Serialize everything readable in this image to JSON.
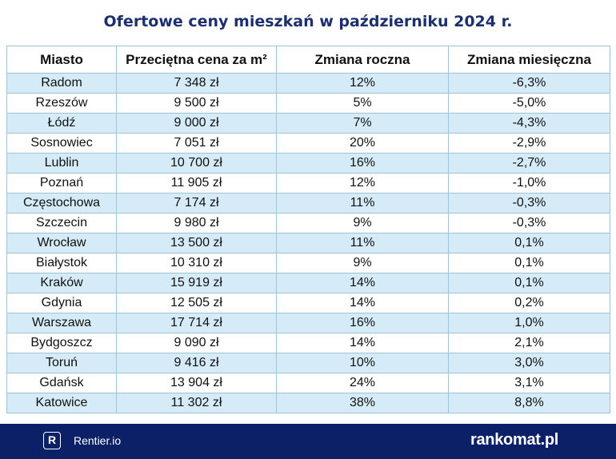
{
  "chart_data": {
    "type": "table",
    "title": "Ofertowe ceny mieszkań w październiku 2024 r.",
    "columns": [
      "Miasto",
      "Przeciętna cena za m²",
      "Zmiana roczna",
      "Zmiana miesięczna"
    ],
    "rows": [
      [
        "Radom",
        "7 348 zł",
        "12%",
        "-6,3%"
      ],
      [
        "Rzeszów",
        "9 500 zł",
        "5%",
        "-5,0%"
      ],
      [
        "Łódź",
        "9 000 zł",
        "7%",
        "-4,3%"
      ],
      [
        "Sosnowiec",
        "7 051 zł",
        "20%",
        "-2,9%"
      ],
      [
        "Lublin",
        "10 700 zł",
        "16%",
        "-2,7%"
      ],
      [
        "Poznań",
        "11 905 zł",
        "12%",
        "-1,0%"
      ],
      [
        "Częstochowa",
        "7 174 zł",
        "11%",
        "-0,3%"
      ],
      [
        "Szczecin",
        "9 980 zł",
        "9%",
        "-0,3%"
      ],
      [
        "Wrocław",
        "13 500 zł",
        "11%",
        "0,1%"
      ],
      [
        "Białystok",
        "10 310 zł",
        "9%",
        "0,1%"
      ],
      [
        "Kraków",
        "15 919 zł",
        "14%",
        "0,1%"
      ],
      [
        "Gdynia",
        "12 505 zł",
        "14%",
        "0,2%"
      ],
      [
        "Warszawa",
        "17 714 zł",
        "16%",
        "1,0%"
      ],
      [
        "Bydgoszcz",
        "9 090 zł",
        "14%",
        "2,1%"
      ],
      [
        "Toruń",
        "9 416 zł",
        "10%",
        "3,0%"
      ],
      [
        "Gdańsk",
        "13 904 zł",
        "24%",
        "3,1%"
      ],
      [
        "Katowice",
        "11 302 zł",
        "38%",
        "8,8%"
      ]
    ]
  },
  "footer": {
    "left_logo_letter": "R",
    "left_brand": "Rentier.io",
    "right_brand": "rankomat.pl"
  },
  "colors": {
    "title": "#1c2f6e",
    "stripe": "#d5ebf7",
    "border": "#9ec3d8",
    "footer_bg": "#0b2067"
  }
}
